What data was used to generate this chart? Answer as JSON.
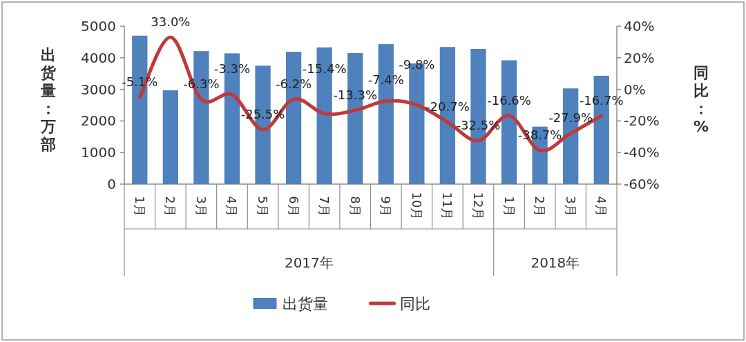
{
  "chart_data": {
    "type": "bar",
    "categories": [
      "1月",
      "2月",
      "3月",
      "4月",
      "5月",
      "6月",
      "7月",
      "8月",
      "9月",
      "10月",
      "11月",
      "12月",
      "1月",
      "2月",
      "3月",
      "4月"
    ],
    "series": [
      {
        "name": "出货量",
        "color": "#4f81bd",
        "values": [
          4700,
          2970,
          4210,
          4140,
          3750,
          4190,
          4330,
          4150,
          4430,
          3820,
          4340,
          4280,
          3920,
          1820,
          3030,
          3430
        ]
      },
      {
        "name": "同比",
        "type": "line",
        "axis": "y2",
        "color": "#c0393b",
        "values": [
          -5.1,
          33.0,
          -6.3,
          -3.3,
          -25.5,
          -6.2,
          -15.4,
          -13.3,
          -7.4,
          -9.8,
          -20.7,
          -32.5,
          -16.6,
          -38.7,
          -27.9,
          -16.7
        ],
        "value_labels": [
          "-5.1%",
          "33.0%",
          "-6.3%",
          "-3.3%",
          "-25.5%",
          "-6.2%",
          "-15.4%",
          "-13.3%",
          "-7.4%",
          "-9.8%",
          "-20.7%",
          "-32.5%",
          "-16.6%",
          "-38.7%",
          "-27.9%",
          "-16.7%"
        ]
      }
    ],
    "ylabel": "出货量：万部",
    "y2label": "同比：%",
    "ylim": [
      0,
      5000
    ],
    "yticks": [
      0,
      1000,
      2000,
      3000,
      4000,
      5000
    ],
    "y2lim": [
      -60,
      40
    ],
    "y2ticks": [
      {
        "value": -60,
        "label": "-60%"
      },
      {
        "value": -40,
        "label": "-40%"
      },
      {
        "value": -20,
        "label": "-20%"
      },
      {
        "value": 0,
        "label": "0%"
      },
      {
        "value": 20,
        "label": "20%"
      },
      {
        "value": 40,
        "label": "40%"
      }
    ],
    "annotations": [
      "2017年",
      "2018年"
    ],
    "legend": "bottom"
  }
}
